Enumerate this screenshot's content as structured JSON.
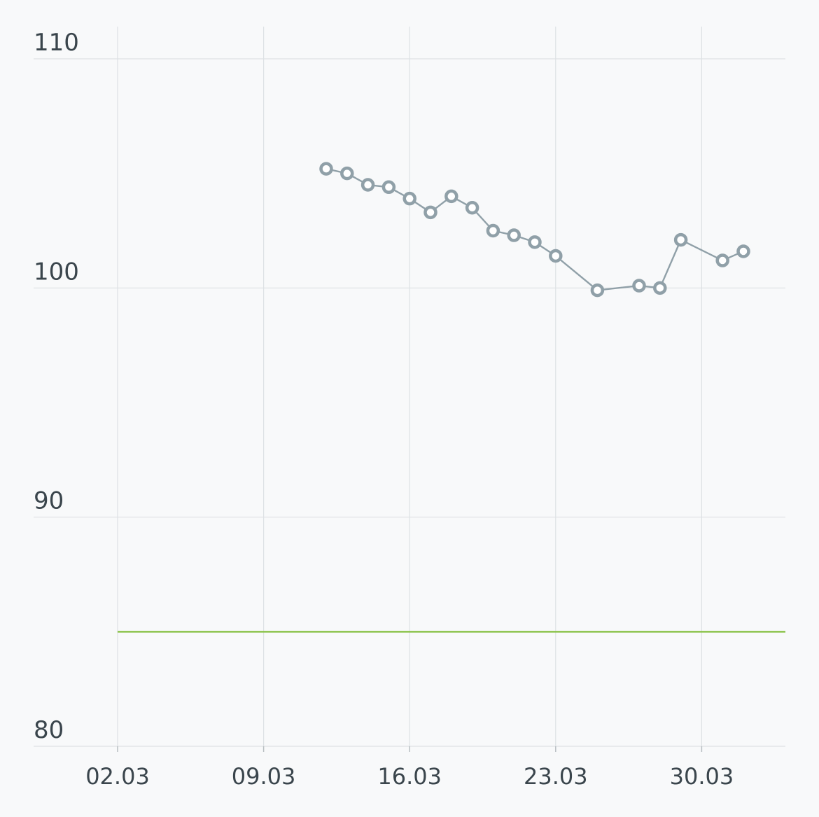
{
  "chart_data": {
    "type": "line",
    "title": "",
    "xlabel": "",
    "ylabel": "",
    "ylim": [
      80,
      110
    ],
    "y_ticks": [
      "80",
      "90",
      "100",
      "110"
    ],
    "x_tick_labels": [
      "02.03",
      "09.03",
      "16.03",
      "23.03",
      "30.03"
    ],
    "grid": true,
    "reference_line": {
      "value": 85,
      "color": "#8bc34a"
    },
    "series": [
      {
        "color": "#90a0a8",
        "points": [
          {
            "x": "12.03",
            "y": 105.2
          },
          {
            "x": "13.03",
            "y": 105.0
          },
          {
            "x": "14.03",
            "y": 104.5
          },
          {
            "x": "15.03",
            "y": 104.4
          },
          {
            "x": "16.03",
            "y": 103.9
          },
          {
            "x": "17.03",
            "y": 103.3
          },
          {
            "x": "18.03",
            "y": 104.0
          },
          {
            "x": "19.03",
            "y": 103.5
          },
          {
            "x": "20.03",
            "y": 102.5
          },
          {
            "x": "21.03",
            "y": 102.3
          },
          {
            "x": "22.03",
            "y": 102.0
          },
          {
            "x": "23.03",
            "y": 101.4
          },
          {
            "x": "25.03",
            "y": 99.9
          },
          {
            "x": "27.03",
            "y": 100.1
          },
          {
            "x": "28.03",
            "y": 100.0
          },
          {
            "x": "29.03",
            "y": 102.1
          },
          {
            "x": "31.03",
            "y": 101.2
          },
          {
            "x": "01.04",
            "y": 101.6
          }
        ]
      }
    ],
    "colors": {
      "background": "#f8f9fa",
      "grid": "#dde1e4",
      "text": "#3a454c",
      "series": "#90a0a8",
      "reference": "#8bc34a"
    }
  }
}
